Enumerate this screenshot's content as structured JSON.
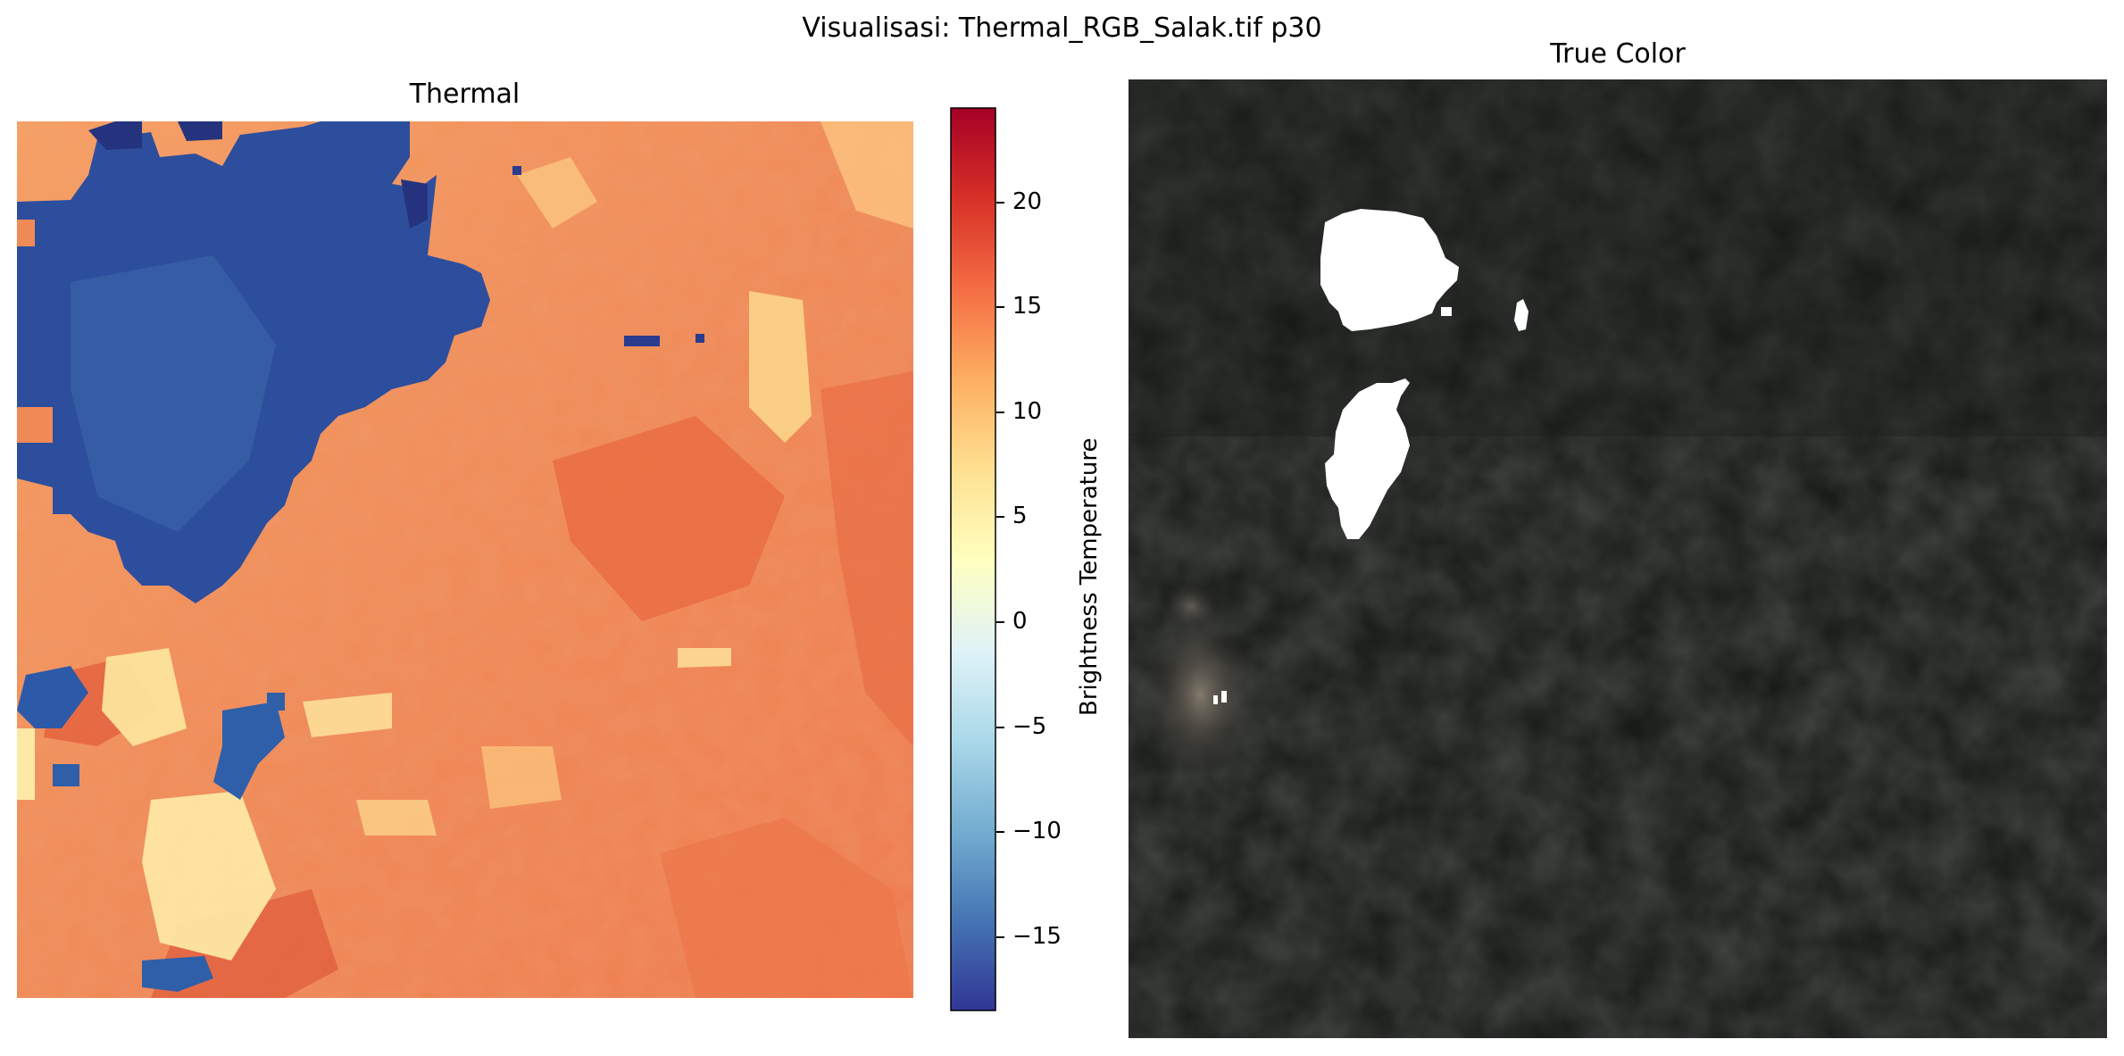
{
  "figure": {
    "suptitle": "Visualisasi: Thermal_RGB_Salak.tif p30"
  },
  "thermal_panel": {
    "title": "Thermal"
  },
  "colorbar": {
    "label": "Brightness Temperature",
    "colormap": "RdYlBu_r",
    "range": [
      -18.5,
      24.5
    ],
    "ticks": [
      {
        "value": 20,
        "label": "20"
      },
      {
        "value": 15,
        "label": "15"
      },
      {
        "value": 10,
        "label": "10"
      },
      {
        "value": 5,
        "label": "5"
      },
      {
        "value": 0,
        "label": "0"
      },
      {
        "value": -5,
        "label": "−5"
      },
      {
        "value": -10,
        "label": "−10"
      },
      {
        "value": -15,
        "label": "−15"
      }
    ],
    "colors": [
      "#313695",
      "#4575b4",
      "#74add1",
      "#abd9e9",
      "#e0f3f8",
      "#ffffbf",
      "#fee090",
      "#fdae61",
      "#f46d43",
      "#d73027",
      "#a50026"
    ]
  },
  "truecolor_panel": {
    "title": "True Color"
  }
}
